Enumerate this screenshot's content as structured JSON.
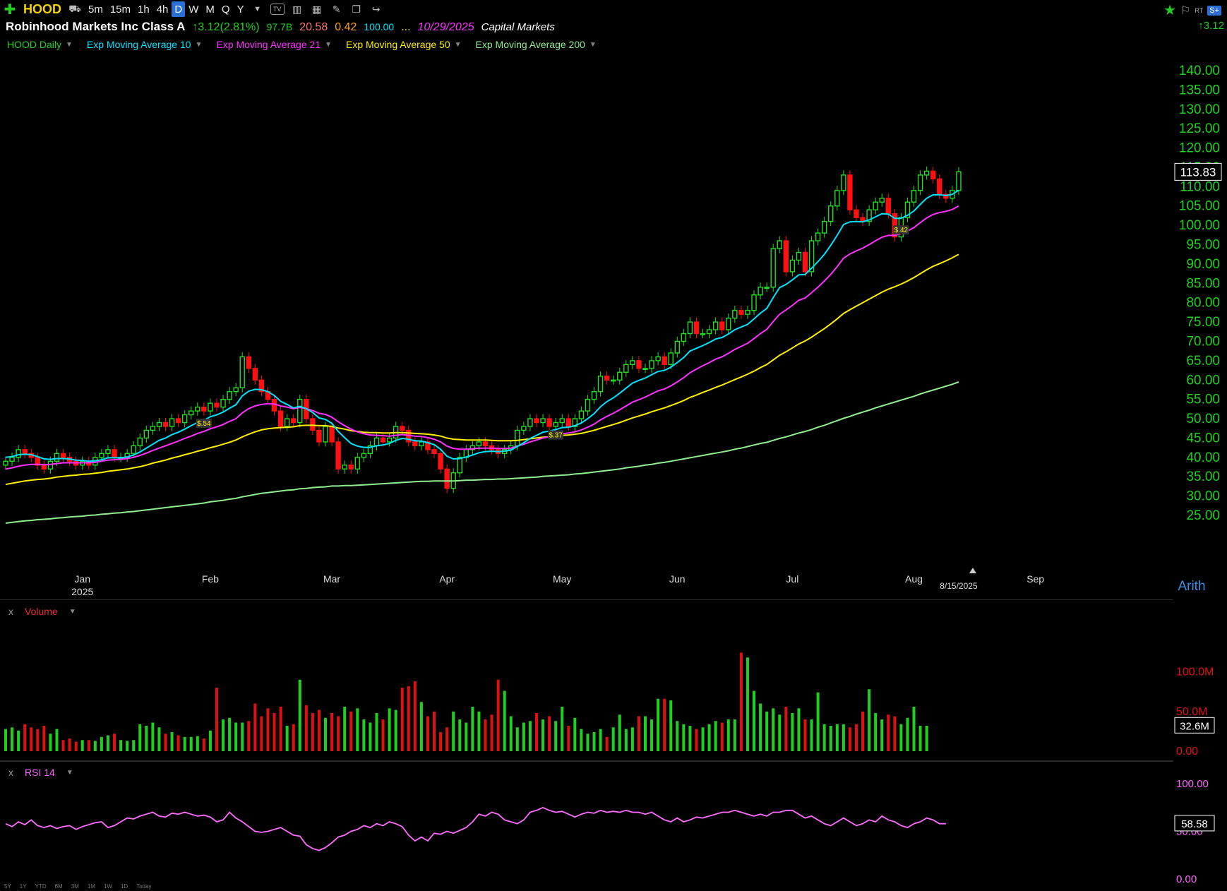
{
  "toolbar": {
    "symbol": "HOOD",
    "intervals": [
      "5m",
      "15m",
      "1h",
      "4h",
      "D",
      "W",
      "M",
      "Q",
      "Y"
    ],
    "selected_interval": "D"
  },
  "header": {
    "company": "Robinhood Markets Inc Class A",
    "change": "↑3.12(2.81%)",
    "val1": "97.7B",
    "val2": "20.58",
    "val3": "0.42",
    "val4": "100.00",
    "ellipsis": "...",
    "date": "10/29/2025",
    "sector": "Capital Markets",
    "right_change": "↑3.12"
  },
  "legend": [
    {
      "label": "HOOD Daily",
      "color": "#20d020"
    },
    {
      "label": "Exp Moving Average 10",
      "color": "#00e5ff"
    },
    {
      "label": "Exp Moving Average 21",
      "color": "#ff30ff"
    },
    {
      "label": "Exp Moving Average 50",
      "color": "#fff000"
    },
    {
      "label": "Exp Moving Average 200",
      "color": "#90ee90"
    }
  ],
  "chart_data": {
    "type": "candlestick",
    "price_axis": {
      "ticks": [
        "140.00",
        "135.00",
        "130.00",
        "125.00",
        "120.00",
        "115.00",
        "110.00",
        "105.00",
        "100.00",
        "95.00",
        "90.00",
        "85.00",
        "80.00",
        "75.00",
        "70.00",
        "65.00",
        "60.00",
        "55.00",
        "50.00",
        "45.00",
        "40.00",
        "35.00",
        "30.00",
        "25.00"
      ],
      "ylim": [
        25,
        140
      ]
    },
    "last_price": "113.83",
    "scale": "Arith",
    "x_axis": {
      "months": [
        "Jan",
        "Feb",
        "Mar",
        "Apr",
        "May",
        "Jun",
        "Jul",
        "Aug",
        "Sep"
      ],
      "year": "2025",
      "date_flag": "8/15/2025"
    },
    "close": [
      39,
      40,
      42,
      41,
      40,
      38,
      37,
      39,
      41,
      40,
      39,
      38,
      39,
      38,
      40,
      41,
      42,
      40,
      40,
      41,
      43,
      45,
      47,
      48,
      49,
      48,
      50,
      49,
      51,
      52,
      53,
      52,
      54,
      53,
      55,
      57,
      58,
      66,
      63,
      60,
      57,
      55,
      52,
      48,
      50,
      49,
      55,
      50,
      47,
      44,
      48,
      44,
      37,
      38,
      37,
      40,
      41,
      43,
      45,
      44,
      45,
      48,
      47,
      44,
      43,
      44,
      42,
      41,
      37,
      32,
      36,
      40,
      42,
      43,
      44,
      43,
      42,
      41,
      42,
      43,
      47,
      48,
      50,
      49,
      50,
      48,
      49,
      50,
      48,
      50,
      52,
      55,
      57,
      61,
      60,
      60,
      62,
      64,
      65,
      63,
      63,
      65,
      66,
      64,
      67,
      70,
      72,
      75,
      72,
      72,
      73,
      75,
      73,
      76,
      78,
      77,
      78,
      82,
      84,
      84,
      94,
      96,
      88,
      91,
      93,
      88,
      96,
      98,
      101,
      105,
      109,
      113,
      104,
      102,
      101,
      104,
      106,
      107,
      103,
      97,
      102,
      106,
      109,
      113,
      114,
      112,
      108,
      107,
      109,
      113.83
    ],
    "ema10": [
      40,
      40.2,
      40.7,
      40.8,
      40.7,
      40.2,
      39.6,
      39.5,
      39.7,
      39.7,
      39.6,
      39.3,
      39.2,
      39.0,
      39.1,
      39.4,
      39.9,
      39.9,
      39.9,
      40.1,
      40.6,
      41.4,
      42.4,
      43.4,
      44.4,
      45.0,
      45.9,
      46.5,
      47.3,
      48.2,
      49.0,
      49.6,
      50.5,
      51.0,
      51.7,
      52.7,
      53.6,
      55.9,
      57.1,
      57.6,
      57.5,
      57.0,
      56.0,
      54.5,
      53.7,
      52.8,
      53.2,
      52.6,
      51.6,
      50.2,
      49.8,
      48.8,
      46.7,
      45.1,
      43.6,
      42.9,
      42.6,
      42.6,
      43.0,
      43.2,
      43.6,
      44.4,
      44.9,
      44.7,
      44.3,
      44.2,
      43.8,
      43.3,
      42.1,
      40.3,
      39.6,
      39.7,
      40.1,
      40.6,
      41.2,
      41.5,
      41.6,
      41.5,
      41.6,
      41.9,
      42.8,
      43.8,
      44.9,
      45.7,
      46.5,
      46.8,
      47.2,
      47.7,
      47.8,
      48.2,
      48.9,
      50.0,
      51.3,
      53.1,
      54.4,
      55.4,
      56.6,
      57.9,
      59.2,
      59.9,
      60.5,
      61.4,
      62.2,
      62.5,
      63.3,
      64.5,
      65.8,
      67.5,
      68.2,
      68.9,
      69.7,
      70.6,
      71.0,
      71.9,
      73.0,
      73.7,
      74.4,
      75.8,
      77.3,
      78.5,
      81.3,
      83.9,
      84.7,
      85.9,
      87.2,
      87.3,
      88.9,
      90.6,
      92.5,
      94.8,
      97.4,
      100.2,
      100.9,
      101.0,
      100.9,
      101.4,
      102.2,
      103.0,
      102.9,
      101.8,
      101.8,
      102.6,
      103.7,
      105.4,
      107.0,
      107.9,
      107.9,
      107.7,
      108.0,
      109.1
    ],
    "ema21": [
      37,
      37.3,
      37.7,
      38.0,
      38.2,
      38.2,
      38.1,
      38.2,
      38.4,
      38.6,
      38.6,
      38.6,
      38.6,
      38.6,
      38.7,
      39.0,
      39.3,
      39.4,
      39.5,
      39.7,
      40.0,
      40.5,
      41.1,
      41.8,
      42.4,
      43.0,
      43.6,
      44.2,
      44.9,
      45.5,
      46.2,
      46.7,
      47.4,
      47.9,
      48.5,
      49.3,
      50.0,
      51.5,
      52.6,
      53.3,
      53.7,
      53.9,
      53.8,
      53.3,
      53.0,
      52.6,
      52.9,
      52.6,
      52.1,
      51.4,
      51.1,
      50.4,
      49.2,
      48.2,
      47.3,
      46.6,
      46.1,
      45.8,
      45.7,
      45.6,
      45.5,
      45.7,
      45.9,
      45.7,
      45.5,
      45.4,
      45.1,
      44.7,
      44.0,
      42.9,
      42.3,
      42.1,
      42.1,
      42.2,
      42.4,
      42.4,
      42.4,
      42.3,
      42.3,
      42.4,
      42.9,
      43.4,
      44.0,
      44.5,
      45.0,
      45.3,
      45.7,
      46.1,
      46.3,
      46.6,
      47.1,
      47.8,
      48.6,
      49.7,
      50.6,
      51.4,
      52.3,
      53.3,
      54.3,
      54.9,
      55.6,
      56.4,
      57.2,
      57.7,
      58.5,
      59.5,
      60.6,
      61.9,
      62.8,
      63.7,
      64.5,
      65.4,
      66.0,
      66.9,
      67.9,
      68.7,
      69.5,
      70.7,
      72.0,
      73.1,
      75.1,
      77.0,
      78.1,
      79.3,
      80.6,
      81.2,
      82.6,
      84.0,
      85.6,
      87.3,
      89.3,
      91.5,
      92.6,
      93.4,
      94.1,
      95.0,
      96.0,
      96.9,
      97.4,
      97.4,
      97.8,
      98.5,
      99.4,
      100.7,
      101.9,
      102.8,
      103.3,
      103.6,
      104.1,
      105.0
    ],
    "ema50": [
      33,
      33.3,
      33.6,
      33.9,
      34.1,
      34.3,
      34.4,
      34.6,
      34.9,
      35.1,
      35.3,
      35.4,
      35.6,
      35.7,
      35.9,
      36.1,
      36.4,
      36.6,
      36.8,
      37.0,
      37.3,
      37.6,
      38.0,
      38.5,
      38.9,
      39.3,
      39.8,
      40.2,
      40.7,
      41.1,
      41.6,
      42.0,
      42.5,
      42.9,
      43.4,
      43.9,
      44.5,
      45.3,
      46.0,
      46.6,
      47.1,
      47.4,
      47.6,
      47.7,
      47.8,
      47.9,
      48.2,
      48.3,
      48.3,
      48.2,
      48.2,
      48.0,
      47.6,
      47.3,
      46.9,
      46.7,
      46.5,
      46.4,
      46.4,
      46.3,
      46.3,
      46.4,
      46.4,
      46.3,
      46.2,
      46.1,
      46.0,
      45.8,
      45.5,
      45.0,
      44.7,
      44.6,
      44.5,
      44.5,
      44.5,
      44.5,
      44.4,
      44.3,
      44.3,
      44.3,
      44.4,
      44.6,
      44.8,
      45.0,
      45.2,
      45.3,
      45.5,
      45.7,
      45.8,
      46.0,
      46.2,
      46.6,
      47.0,
      47.5,
      48.0,
      48.5,
      49.0,
      49.6,
      50.2,
      50.7,
      51.2,
      51.8,
      52.3,
      52.8,
      53.4,
      54.0,
      54.7,
      55.5,
      56.1,
      56.8,
      57.4,
      58.1,
      58.7,
      59.4,
      60.1,
      60.8,
      61.5,
      62.3,
      63.2,
      64.0,
      65.2,
      66.4,
      67.3,
      68.3,
      69.3,
      70.1,
      71.1,
      72.2,
      73.3,
      74.5,
      75.8,
      77.2,
      78.2,
      79.1,
      80.0,
      80.9,
      81.8,
      82.7,
      83.5,
      84.1,
      84.8,
      85.6,
      86.5,
      87.5,
      88.5,
      89.4,
      90.1,
      90.8,
      91.6,
      92.5
    ],
    "ema200": [
      23,
      23.2,
      23.4,
      23.6,
      23.7,
      23.9,
      24.0,
      24.1,
      24.3,
      24.4,
      24.6,
      24.7,
      24.8,
      25.0,
      25.1,
      25.3,
      25.4,
      25.6,
      25.7,
      25.9,
      26.0,
      26.2,
      26.4,
      26.6,
      26.8,
      27.0,
      27.2,
      27.4,
      27.6,
      27.8,
      28.0,
      28.2,
      28.5,
      28.7,
      28.9,
      29.2,
      29.4,
      29.8,
      30.1,
      30.4,
      30.7,
      30.9,
      31.1,
      31.3,
      31.5,
      31.6,
      31.9,
      32.0,
      32.2,
      32.3,
      32.4,
      32.6,
      32.6,
      32.7,
      32.7,
      32.8,
      32.9,
      33.0,
      33.1,
      33.2,
      33.3,
      33.4,
      33.5,
      33.6,
      33.7,
      33.8,
      33.8,
      33.9,
      33.9,
      33.9,
      33.9,
      34.0,
      34.1,
      34.1,
      34.2,
      34.3,
      34.3,
      34.4,
      34.4,
      34.5,
      34.6,
      34.7,
      34.8,
      34.9,
      35.1,
      35.2,
      35.3,
      35.4,
      35.5,
      35.7,
      35.8,
      36.0,
      36.2,
      36.4,
      36.6,
      36.8,
      37.0,
      37.3,
      37.5,
      37.7,
      38.0,
      38.2,
      38.5,
      38.7,
      39.0,
      39.3,
      39.6,
      39.9,
      40.2,
      40.5,
      40.8,
      41.1,
      41.4,
      41.7,
      42.1,
      42.4,
      42.8,
      43.2,
      43.6,
      43.9,
      44.4,
      44.9,
      45.3,
      45.8,
      46.3,
      46.7,
      47.2,
      47.8,
      48.3,
      48.9,
      49.5,
      50.1,
      50.6,
      51.2,
      51.7,
      52.2,
      52.8,
      53.3,
      53.8,
      54.3,
      54.8,
      55.3,
      55.8,
      56.4,
      56.9,
      57.4,
      57.9,
      58.4,
      58.9,
      59.5
    ],
    "earnings": [
      {
        "index": 31,
        "label": "$.54"
      },
      {
        "index": 86,
        "label": "$.37"
      },
      {
        "index": 140,
        "label": "$.42"
      }
    ]
  },
  "volume": {
    "title": "Volume",
    "ticks": [
      "100.0M",
      "50.0M",
      "0.00"
    ],
    "last": "32.6M",
    "values": [
      28,
      30,
      26,
      34,
      30,
      28,
      32,
      22,
      28,
      14,
      16,
      12,
      14,
      14,
      13,
      18,
      20,
      22,
      14,
      13,
      14,
      34,
      32,
      36,
      30,
      22,
      24,
      20,
      18,
      18,
      19,
      16,
      26,
      80,
      40,
      42,
      36,
      36,
      38,
      60,
      44,
      54,
      48,
      56,
      32,
      34,
      90,
      58,
      48,
      52,
      42,
      48,
      44,
      56,
      50,
      54,
      40,
      36,
      48,
      40,
      54,
      52,
      80,
      82,
      88,
      62,
      44,
      50,
      24,
      30,
      50,
      40,
      36,
      56,
      50,
      40,
      46,
      90,
      76,
      44,
      30,
      36,
      38,
      48,
      40,
      44,
      38,
      56,
      32,
      42,
      28,
      22,
      24,
      28,
      18,
      30,
      46,
      28,
      30,
      44,
      44,
      40,
      66,
      66,
      64,
      38,
      34,
      32,
      28,
      30,
      34,
      38,
      36,
      40,
      40,
      124,
      118,
      76,
      60,
      50,
      54,
      46,
      56,
      48,
      54,
      40,
      40,
      74,
      34,
      32,
      34,
      34,
      30,
      34,
      50,
      78,
      48,
      40,
      46,
      44,
      34,
      42,
      56,
      32,
      32
    ],
    "ylim": [
      0,
      125
    ]
  },
  "rsi": {
    "title": "RSI 14",
    "ticks": [
      "100.00",
      "50.00",
      "0.00"
    ],
    "last": "58.58",
    "values": [
      58,
      55,
      60,
      57,
      62,
      56,
      54,
      56,
      53,
      55,
      56,
      52,
      55,
      57,
      59,
      60,
      54,
      56,
      60,
      64,
      63,
      66,
      68,
      70,
      66,
      65,
      69,
      68,
      70,
      68,
      66,
      67,
      65,
      60,
      62,
      70,
      64,
      60,
      55,
      50,
      49,
      50,
      52,
      54,
      50,
      46,
      45,
      36,
      32,
      30,
      33,
      38,
      44,
      46,
      50,
      52,
      56,
      54,
      58,
      56,
      60,
      58,
      55,
      46,
      40,
      44,
      40,
      48,
      47,
      50,
      48,
      51,
      54,
      60,
      68,
      66,
      70,
      68,
      62,
      60,
      58,
      62,
      70,
      72,
      75,
      72,
      70,
      71,
      68,
      65,
      68,
      70,
      69,
      72,
      70,
      71,
      70,
      72,
      70,
      70,
      68,
      70,
      66,
      62,
      60,
      64,
      60,
      62,
      65,
      64,
      66,
      68,
      70,
      70,
      72,
      70,
      68,
      66,
      68,
      66,
      70,
      70,
      72,
      72,
      68,
      64,
      66,
      62,
      58,
      56,
      60,
      64,
      60,
      56,
      58,
      62,
      60,
      66,
      62,
      60,
      56,
      54,
      58,
      60,
      64,
      62,
      58,
      58
    ]
  },
  "footer_ranges": [
    "5Y",
    "1Y",
    "YTD",
    "6M",
    "3M",
    "1M",
    "1W",
    "1D",
    "Today"
  ]
}
